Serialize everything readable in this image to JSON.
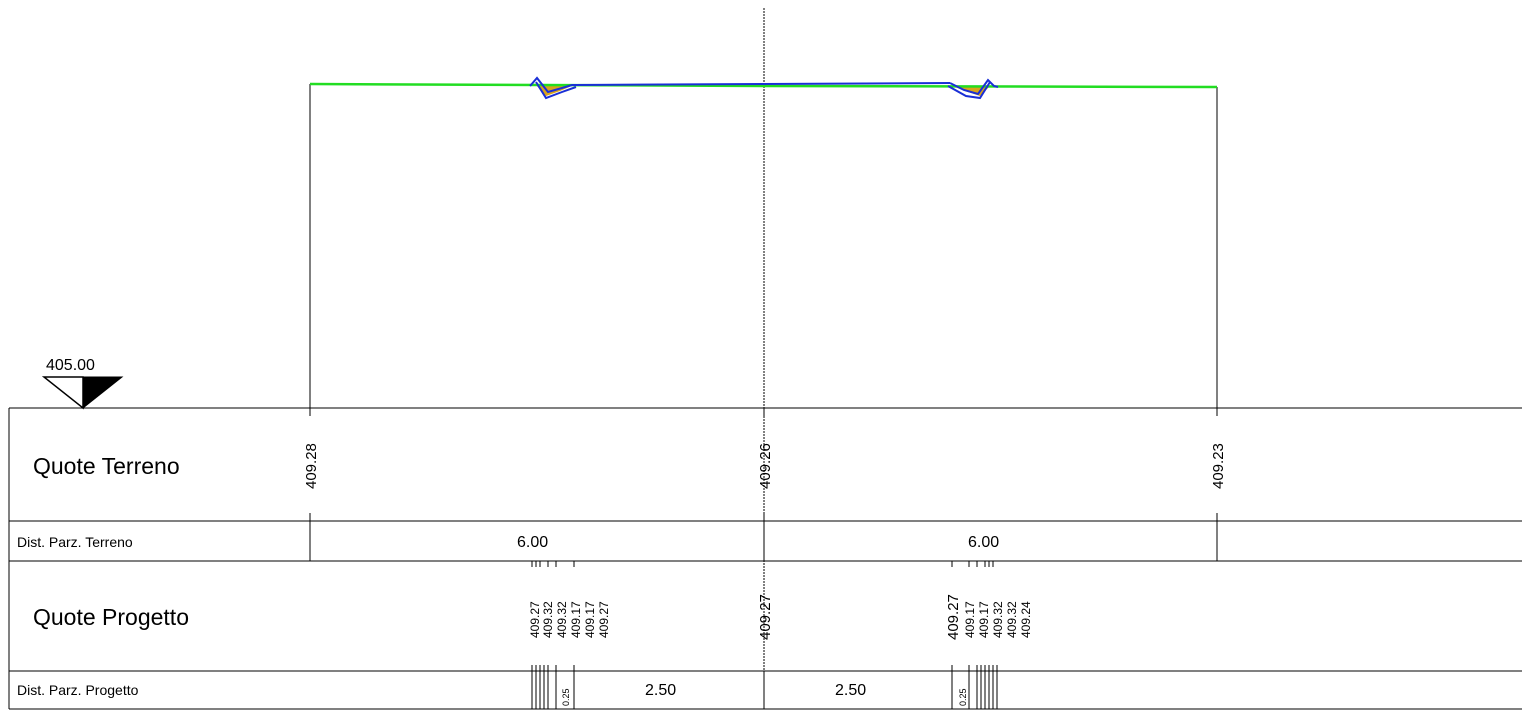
{
  "datum": {
    "label": "405.00"
  },
  "rows": {
    "terrain_elev": {
      "label": "Quote Terreno"
    },
    "terrain_dist": {
      "label": "Dist. Parz. Terreno"
    },
    "project_elev": {
      "label": "Quote Progetto"
    },
    "project_dist": {
      "label": "Dist. Parz. Progetto"
    }
  },
  "terrain": {
    "elevations": [
      {
        "value": "409.28",
        "size": "normal"
      },
      {
        "value": "409.26",
        "size": "normal"
      },
      {
        "value": "409.23",
        "size": "normal"
      }
    ],
    "distances": [
      "6.00",
      "6.00"
    ]
  },
  "project": {
    "elevations": [
      {
        "value": "409.27",
        "size": "small"
      },
      {
        "value": "409.32",
        "size": "small"
      },
      {
        "value": "409.32",
        "size": "small"
      },
      {
        "value": "409.17",
        "size": "small"
      },
      {
        "value": "409.17",
        "size": "small"
      },
      {
        "value": "409.27",
        "size": "small"
      },
      {
        "value": "409.27",
        "size": "normal"
      },
      {
        "value": "409.27",
        "size": "normal"
      },
      {
        "value": "409.17",
        "size": "small"
      },
      {
        "value": "409.17",
        "size": "small"
      },
      {
        "value": "409.32",
        "size": "small"
      },
      {
        "value": "409.32",
        "size": "small"
      },
      {
        "value": "409.24",
        "size": "small"
      }
    ],
    "distances": [
      {
        "value": "0.25",
        "size": "tiny"
      },
      {
        "value": "2.50",
        "size": "normal"
      },
      {
        "value": "2.50",
        "size": "normal"
      },
      {
        "value": "0.25",
        "size": "tiny"
      }
    ]
  },
  "colors": {
    "terrain_line": "#22dd22",
    "project_line": "#1a2fd6",
    "fill_orange": "#d9a31a",
    "frame": "#000000"
  }
}
